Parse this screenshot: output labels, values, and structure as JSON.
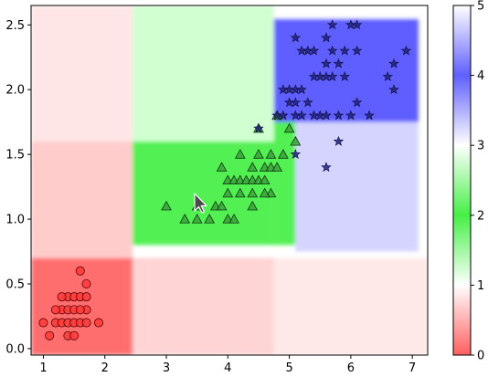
{
  "chart_data": {
    "type": "scatter",
    "title": "",
    "xlabel": "",
    "ylabel": "",
    "xlim": [
      0.8,
      7.25
    ],
    "ylim": [
      -0.05,
      2.65
    ],
    "xticks": [
      1,
      2,
      3,
      4,
      5,
      6,
      7
    ],
    "yticks": [
      0.0,
      0.5,
      1.0,
      1.5,
      2.0,
      2.5
    ],
    "grid": false,
    "colorbar": {
      "range": [
        0,
        5
      ],
      "ticks": [
        0,
        1,
        2,
        3,
        4,
        5
      ],
      "stops": [
        {
          "v": 0,
          "color": "#ff5f5f"
        },
        {
          "v": 1,
          "color": "#ffffff"
        },
        {
          "v": 2,
          "color": "#46ef46"
        },
        {
          "v": 3,
          "color": "#ffffff"
        },
        {
          "v": 4,
          "color": "#5f5fff"
        },
        {
          "v": 5,
          "color": "#ffffff"
        }
      ]
    },
    "background_regions": [
      {
        "x": [
          0.8,
          2.45
        ],
        "y": [
          -0.05,
          0.7
        ],
        "color": "#ff6e6e"
      },
      {
        "x": [
          2.45,
          4.75
        ],
        "y": [
          -0.05,
          0.7
        ],
        "color": "#ffd4d4"
      },
      {
        "x": [
          4.75,
          7.25
        ],
        "y": [
          -0.05,
          0.7
        ],
        "color": "#ffe8e8"
      },
      {
        "x": [
          0.8,
          2.45
        ],
        "y": [
          0.7,
          1.6
        ],
        "color": "#ffcccc"
      },
      {
        "x": [
          0.8,
          2.45
        ],
        "y": [
          1.6,
          2.65
        ],
        "color": "#ffe6e6"
      },
      {
        "x": [
          2.45,
          4.75
        ],
        "y": [
          0.8,
          1.6
        ],
        "color": "#52f052"
      },
      {
        "x": [
          2.45,
          4.75
        ],
        "y": [
          1.6,
          2.65
        ],
        "color": "#d2ffd2"
      },
      {
        "x": [
          4.75,
          5.1
        ],
        "y": [
          0.8,
          1.75
        ],
        "color": "#52f052"
      },
      {
        "x": [
          5.1,
          7.1
        ],
        "y": [
          0.75,
          1.75
        ],
        "color": "#d4d4ff"
      },
      {
        "x": [
          4.75,
          7.1
        ],
        "y": [
          1.75,
          2.55
        ],
        "color": "#5f5fff"
      },
      {
        "x": [
          4.75,
          7.1
        ],
        "y": [
          2.55,
          2.65
        ],
        "color": "#ffffff"
      }
    ],
    "series": [
      {
        "marker": "circle",
        "color": "#ff3a3a",
        "points": [
          [
            1.0,
            0.2
          ],
          [
            1.1,
            0.1
          ],
          [
            1.2,
            0.2
          ],
          [
            1.3,
            0.2
          ],
          [
            1.3,
            0.3
          ],
          [
            1.4,
            0.1
          ],
          [
            1.4,
            0.2
          ],
          [
            1.4,
            0.3
          ],
          [
            1.4,
            0.4
          ],
          [
            1.5,
            0.1
          ],
          [
            1.5,
            0.2
          ],
          [
            1.5,
            0.3
          ],
          [
            1.5,
            0.4
          ],
          [
            1.6,
            0.2
          ],
          [
            1.6,
            0.4
          ],
          [
            1.6,
            0.6
          ],
          [
            1.7,
            0.2
          ],
          [
            1.7,
            0.3
          ],
          [
            1.7,
            0.4
          ],
          [
            1.7,
            0.5
          ],
          [
            1.9,
            0.2
          ],
          [
            1.3,
            0.4
          ],
          [
            1.6,
            0.3
          ],
          [
            1.2,
            0.3
          ]
        ]
      },
      {
        "marker": "triangle",
        "color": "#3ba13b",
        "points": [
          [
            3.0,
            1.1
          ],
          [
            3.3,
            1.0
          ],
          [
            3.5,
            1.0
          ],
          [
            3.5,
            1.1
          ],
          [
            3.7,
            1.0
          ],
          [
            3.8,
            1.1
          ],
          [
            3.9,
            1.1
          ],
          [
            3.9,
            1.4
          ],
          [
            4.0,
            1.0
          ],
          [
            4.0,
            1.2
          ],
          [
            4.0,
            1.3
          ],
          [
            4.1,
            1.0
          ],
          [
            4.1,
            1.3
          ],
          [
            4.2,
            1.2
          ],
          [
            4.2,
            1.3
          ],
          [
            4.2,
            1.5
          ],
          [
            4.3,
            1.3
          ],
          [
            4.4,
            1.2
          ],
          [
            4.4,
            1.3
          ],
          [
            4.4,
            1.4
          ],
          [
            4.5,
            1.3
          ],
          [
            4.5,
            1.5
          ],
          [
            4.5,
            1.7
          ],
          [
            4.6,
            1.3
          ],
          [
            4.6,
            1.4
          ],
          [
            4.7,
            1.2
          ],
          [
            4.7,
            1.4
          ],
          [
            4.7,
            1.5
          ],
          [
            4.8,
            1.4
          ],
          [
            4.8,
            1.8
          ],
          [
            4.9,
            1.5
          ],
          [
            5.0,
            1.7
          ],
          [
            5.1,
            1.6
          ],
          [
            4.6,
            1.2
          ],
          [
            4.4,
            1.1
          ]
        ]
      },
      {
        "marker": "star",
        "color": "#1e1e7a",
        "points": [
          [
            4.5,
            1.7
          ],
          [
            4.8,
            1.8
          ],
          [
            4.9,
            1.8
          ],
          [
            4.9,
            2.0
          ],
          [
            5.0,
            1.9
          ],
          [
            5.0,
            2.0
          ],
          [
            5.1,
            1.5
          ],
          [
            5.1,
            1.8
          ],
          [
            5.1,
            1.9
          ],
          [
            5.1,
            2.0
          ],
          [
            5.1,
            2.4
          ],
          [
            5.2,
            2.0
          ],
          [
            5.2,
            2.3
          ],
          [
            5.3,
            1.9
          ],
          [
            5.3,
            2.3
          ],
          [
            5.4,
            2.1
          ],
          [
            5.4,
            2.3
          ],
          [
            5.5,
            1.8
          ],
          [
            5.5,
            2.1
          ],
          [
            5.6,
            1.4
          ],
          [
            5.6,
            1.8
          ],
          [
            5.6,
            2.1
          ],
          [
            5.6,
            2.2
          ],
          [
            5.6,
            2.4
          ],
          [
            5.7,
            2.1
          ],
          [
            5.7,
            2.3
          ],
          [
            5.7,
            2.5
          ],
          [
            5.8,
            1.6
          ],
          [
            5.8,
            1.8
          ],
          [
            5.8,
            2.2
          ],
          [
            5.9,
            2.1
          ],
          [
            5.9,
            2.3
          ],
          [
            6.0,
            1.8
          ],
          [
            6.0,
            2.5
          ],
          [
            6.1,
            1.9
          ],
          [
            6.1,
            2.3
          ],
          [
            6.1,
            2.5
          ],
          [
            6.3,
            1.8
          ],
          [
            6.6,
            2.1
          ],
          [
            6.7,
            2.0
          ],
          [
            6.7,
            2.2
          ],
          [
            6.9,
            2.3
          ],
          [
            5.4,
            1.8
          ],
          [
            5.2,
            1.8
          ]
        ]
      }
    ]
  }
}
